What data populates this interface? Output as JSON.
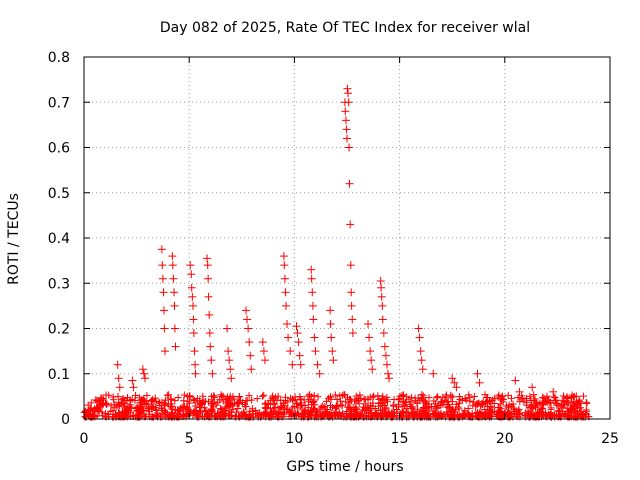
{
  "chart_data": {
    "type": "scatter",
    "title": "Day 082 of 2025, Rate Of TEC Index for receiver wlal",
    "xlabel": "GPS time / hours",
    "ylabel": "ROTI / TECUs",
    "xlim": [
      0,
      25
    ],
    "ylim": [
      0,
      0.8
    ],
    "xticks": [
      "0",
      "5",
      "10",
      "15",
      "20",
      "25"
    ],
    "yticks": [
      "0",
      "0.1",
      "0.2",
      "0.3",
      "0.4",
      "0.5",
      "0.6",
      "0.7",
      "0.8"
    ],
    "grid": true,
    "marker": "+",
    "color": "#ff0000",
    "series": [
      {
        "x": [
          1.6,
          1.65,
          1.7,
          2.3,
          2.35,
          2.8,
          2.85,
          2.9,
          3.7,
          3.72,
          3.75,
          3.78,
          3.8,
          3.82,
          3.85,
          4.2,
          4.22,
          4.25,
          4.28,
          4.3,
          4.32,
          4.35,
          5.05,
          5.1,
          5.12,
          5.15,
          5.18,
          5.2,
          5.22,
          5.25,
          5.28,
          5.3,
          5.85,
          5.88,
          5.9,
          5.92,
          5.95,
          5.98,
          6.0,
          6.05,
          6.1,
          6.8,
          6.85,
          6.9,
          6.95,
          7.0,
          7.7,
          7.75,
          7.8,
          7.85,
          7.9,
          7.95,
          8.5,
          8.55,
          8.6,
          9.5,
          9.52,
          9.55,
          9.58,
          9.6,
          9.65,
          9.7,
          9.8,
          9.9,
          10.1,
          10.15,
          10.2,
          10.25,
          10.3,
          10.8,
          10.82,
          10.85,
          10.88,
          10.9,
          10.95,
          11.0,
          11.1,
          11.2,
          11.7,
          11.72,
          11.75,
          11.8,
          11.85,
          12.4,
          12.42,
          12.45,
          12.48,
          12.5,
          12.52,
          12.55,
          12.58,
          12.6,
          12.62,
          12.65,
          12.68,
          12.7,
          12.72,
          12.75,
          12.78,
          13.5,
          13.55,
          13.6,
          13.65,
          13.7,
          14.1,
          14.12,
          14.15,
          14.18,
          14.2,
          14.25,
          14.3,
          14.35,
          14.4,
          14.45,
          14.5,
          15.9,
          15.95,
          16.0,
          16.05,
          16.1,
          16.6,
          17.5,
          17.6,
          17.7,
          18.7,
          18.8,
          20.5,
          20.7,
          21.3,
          22.3,
          23.4
        ],
        "y": [
          0.12,
          0.09,
          0.07,
          0.085,
          0.07,
          0.11,
          0.1,
          0.09,
          0.375,
          0.34,
          0.31,
          0.28,
          0.24,
          0.2,
          0.15,
          0.36,
          0.34,
          0.31,
          0.28,
          0.25,
          0.2,
          0.16,
          0.34,
          0.32,
          0.29,
          0.27,
          0.25,
          0.22,
          0.19,
          0.15,
          0.12,
          0.1,
          0.355,
          0.34,
          0.31,
          0.27,
          0.23,
          0.19,
          0.16,
          0.13,
          0.1,
          0.2,
          0.15,
          0.13,
          0.11,
          0.09,
          0.24,
          0.22,
          0.2,
          0.17,
          0.14,
          0.11,
          0.17,
          0.15,
          0.13,
          0.36,
          0.34,
          0.31,
          0.28,
          0.25,
          0.21,
          0.18,
          0.15,
          0.12,
          0.205,
          0.19,
          0.17,
          0.14,
          0.12,
          0.33,
          0.31,
          0.28,
          0.25,
          0.22,
          0.18,
          0.15,
          0.12,
          0.1,
          0.24,
          0.21,
          0.18,
          0.15,
          0.13,
          0.7,
          0.68,
          0.66,
          0.64,
          0.62,
          0.73,
          0.72,
          0.7,
          0.6,
          0.52,
          0.43,
          0.34,
          0.28,
          0.25,
          0.22,
          0.19,
          0.21,
          0.18,
          0.15,
          0.13,
          0.11,
          0.305,
          0.29,
          0.27,
          0.25,
          0.22,
          0.19,
          0.16,
          0.14,
          0.12,
          0.1,
          0.09,
          0.2,
          0.18,
          0.15,
          0.13,
          0.11,
          0.1,
          0.09,
          0.08,
          0.07,
          0.1,
          0.08,
          0.085,
          0.06,
          0.07,
          0.06,
          0.05
        ]
      }
    ]
  }
}
